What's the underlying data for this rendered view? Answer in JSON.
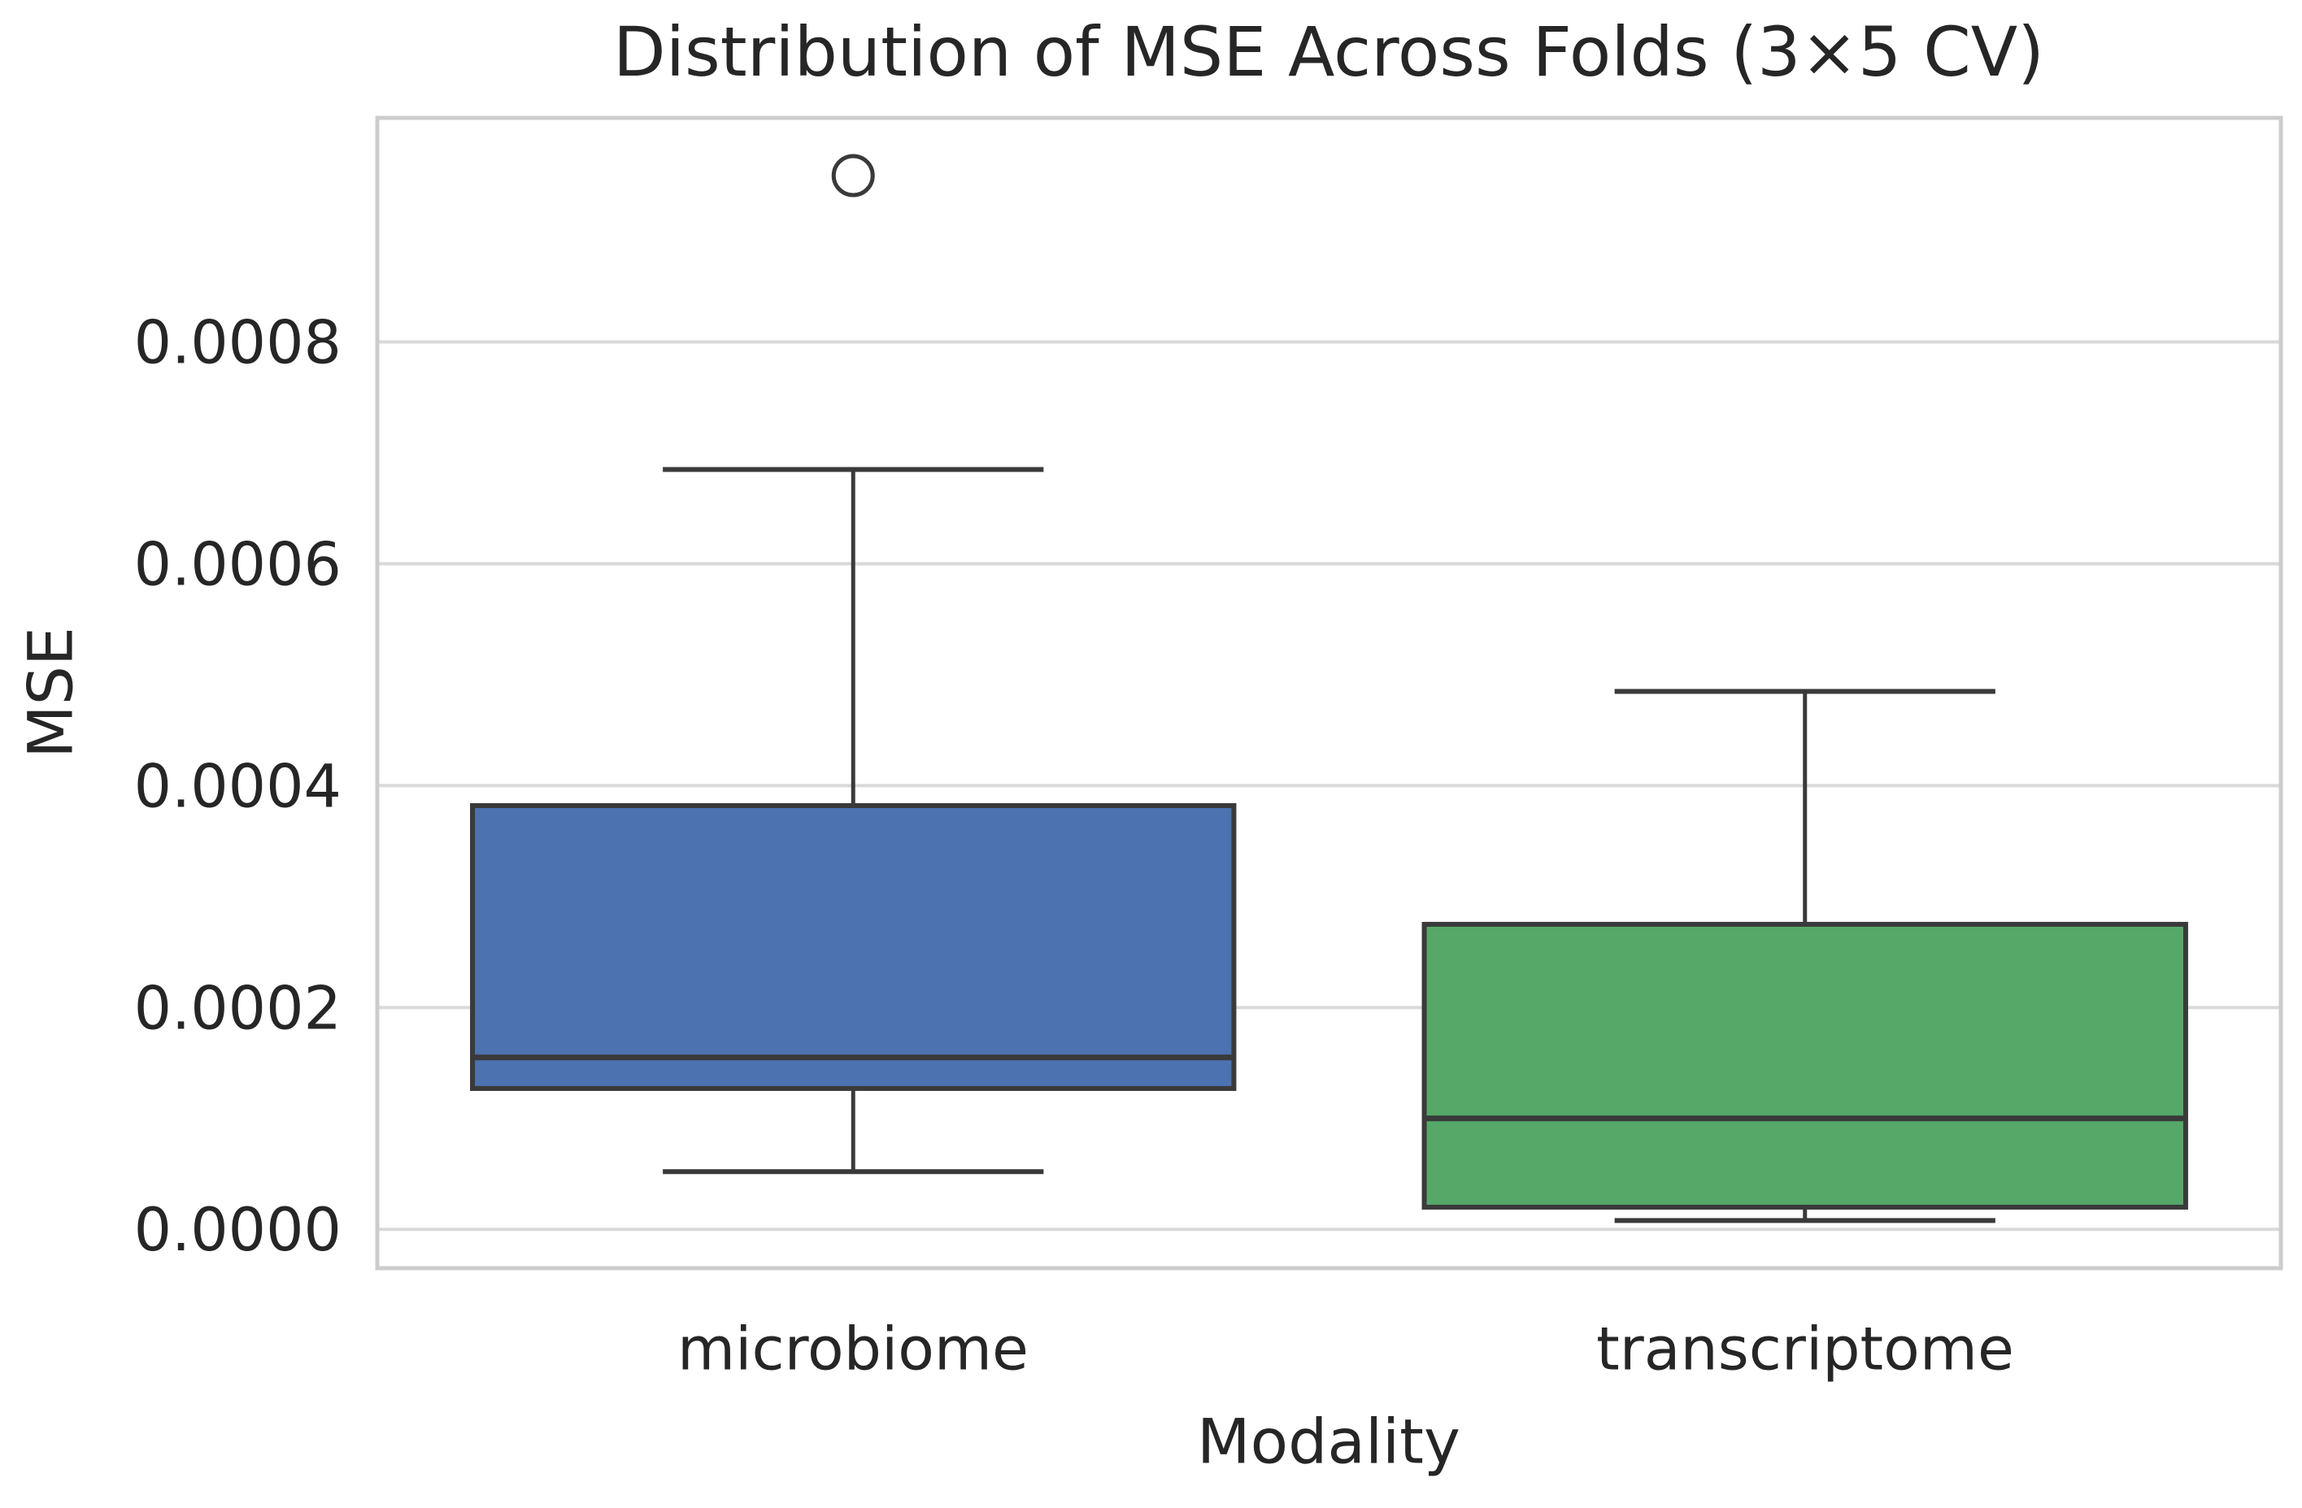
{
  "chart_data": {
    "type": "boxplot",
    "title": "Distribution of MSE Across Folds (3×5 CV)",
    "xlabel": "Modality",
    "ylabel": "MSE",
    "categories": [
      "microbiome",
      "transcriptome"
    ],
    "ylim": [
      -3.5e-05,
      0.001002
    ],
    "yticks": [
      0.0,
      0.0002,
      0.0004,
      0.0006,
      0.0008
    ],
    "ytick_labels": [
      "0.0000",
      "0.0002",
      "0.0004",
      "0.0006",
      "0.0008"
    ],
    "grid": true,
    "legend": "none",
    "series": [
      {
        "name": "microbiome",
        "color": "#4c72b0",
        "whislo": 5.2e-05,
        "q1": 0.000127,
        "med": 0.000155,
        "q3": 0.000382,
        "whishi": 0.000685,
        "fliers": [
          0.00095
        ]
      },
      {
        "name": "transcriptome",
        "color": "#55a868",
        "whislo": 8e-06,
        "q1": 2e-05,
        "med": 0.0001,
        "q3": 0.000275,
        "whishi": 0.000485,
        "fliers": []
      }
    ],
    "style": {
      "box_edge_color": "#3a3a3a",
      "grid_color": "#d9d9d9",
      "spine_color": "#cccccc",
      "text_color": "#262626",
      "background": "#ffffff"
    }
  }
}
